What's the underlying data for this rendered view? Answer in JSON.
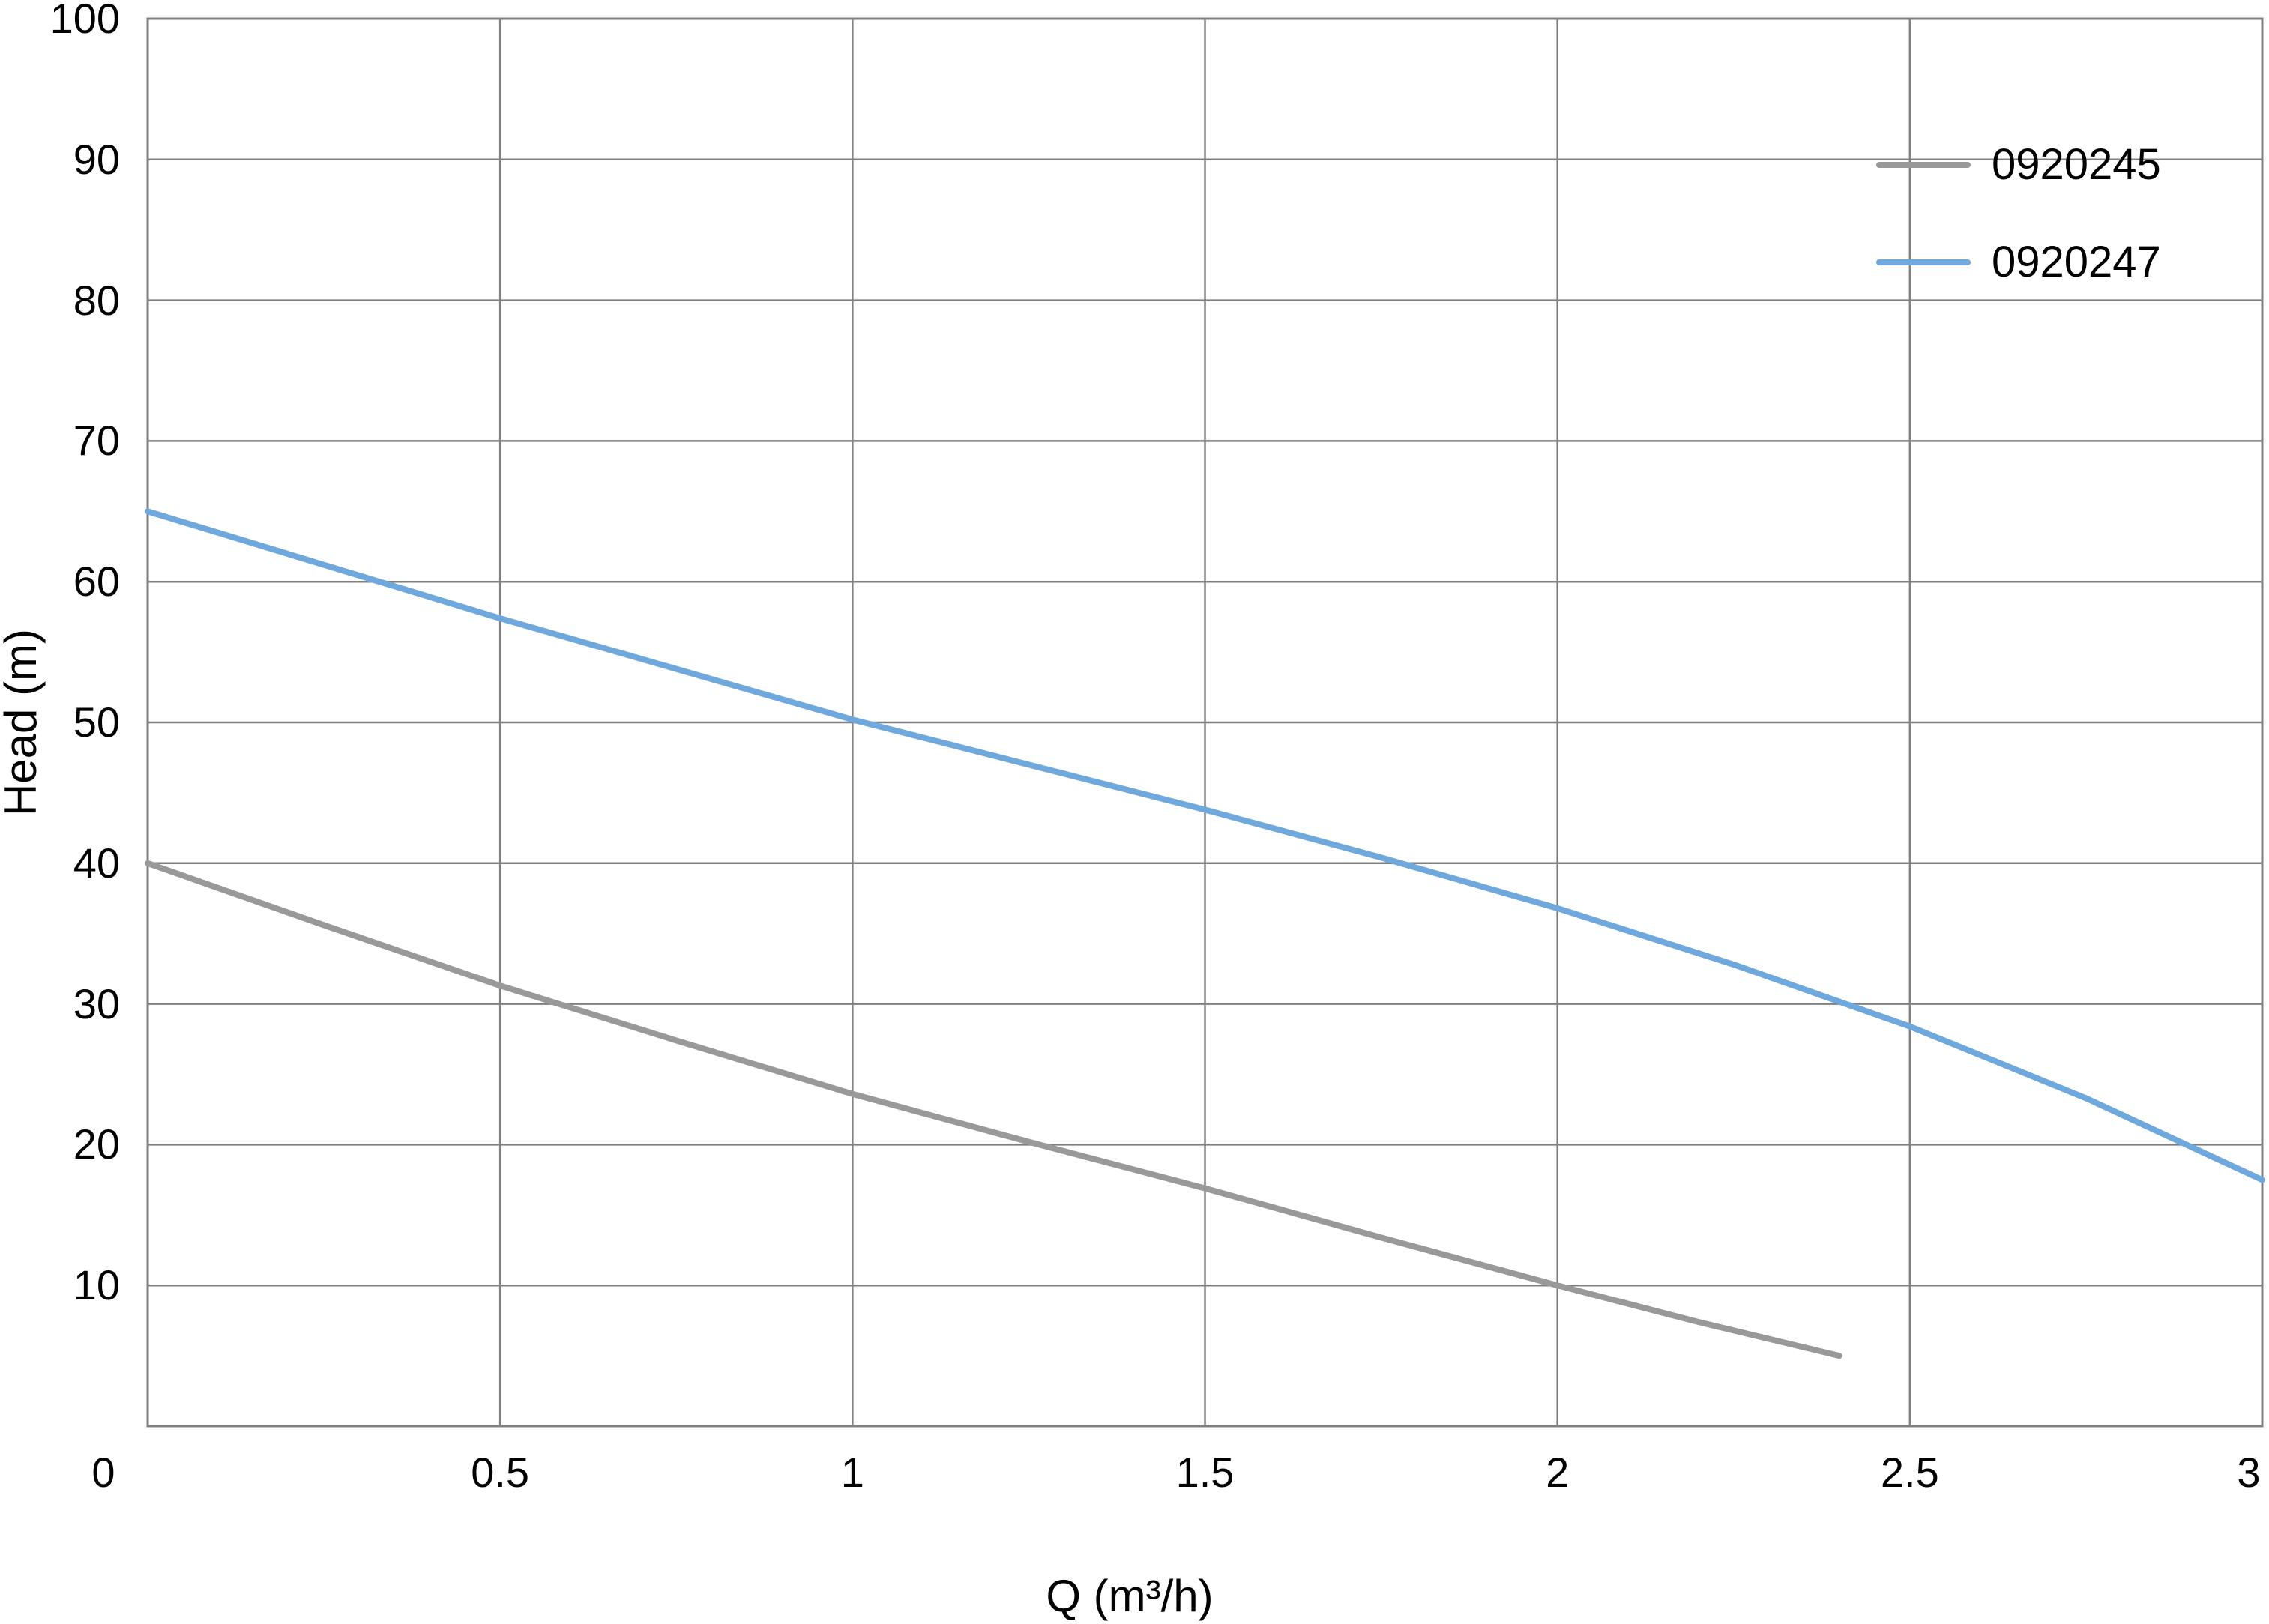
{
  "chart_data": {
    "type": "line",
    "title": "",
    "xlabel": "Q (m³/h)",
    "ylabel": "Head (m)",
    "xlim": [
      0,
      3
    ],
    "ylim": [
      0,
      100
    ],
    "x_ticks": [
      0,
      0.5,
      1,
      1.5,
      2,
      2.5,
      3
    ],
    "x_tick_labels": [
      "0",
      "0.5",
      "1",
      "1.5",
      "2",
      "2.5",
      "3"
    ],
    "y_ticks": [
      0,
      10,
      20,
      30,
      40,
      50,
      60,
      70,
      80,
      90,
      100
    ],
    "y_tick_labels": [
      "",
      "10",
      "20",
      "30",
      "40",
      "50",
      "60",
      "70",
      "80",
      "90",
      "100"
    ],
    "grid": true,
    "legend_position": "inside-top-right",
    "series": [
      {
        "name": "0920245",
        "color": "#999999",
        "x": [
          0,
          0.25,
          0.5,
          0.75,
          1,
          1.25,
          1.5,
          1.75,
          2,
          2.2,
          2.4
        ],
        "y": [
          40,
          35.6,
          31.3,
          27.4,
          23.6,
          20.2,
          16.9,
          13.4,
          10,
          7.4,
          5
        ]
      },
      {
        "name": "0920247",
        "color": "#6fa8dc",
        "x": [
          0,
          0.25,
          0.5,
          0.75,
          1,
          1.25,
          1.5,
          1.75,
          2,
          2.25,
          2.5,
          2.75,
          3
        ],
        "y": [
          65,
          61.2,
          57.4,
          53.8,
          50.2,
          47.0,
          43.8,
          40.4,
          36.8,
          32.8,
          28.4,
          23.3,
          17.5
        ]
      }
    ]
  },
  "legend": {
    "items": [
      {
        "label": "0920245",
        "color": "#999999"
      },
      {
        "label": "0920247",
        "color": "#6fa8dc"
      }
    ]
  },
  "colors": {
    "grid": "#808080",
    "frame": "#808080",
    "text": "#000000",
    "background": "#ffffff"
  }
}
